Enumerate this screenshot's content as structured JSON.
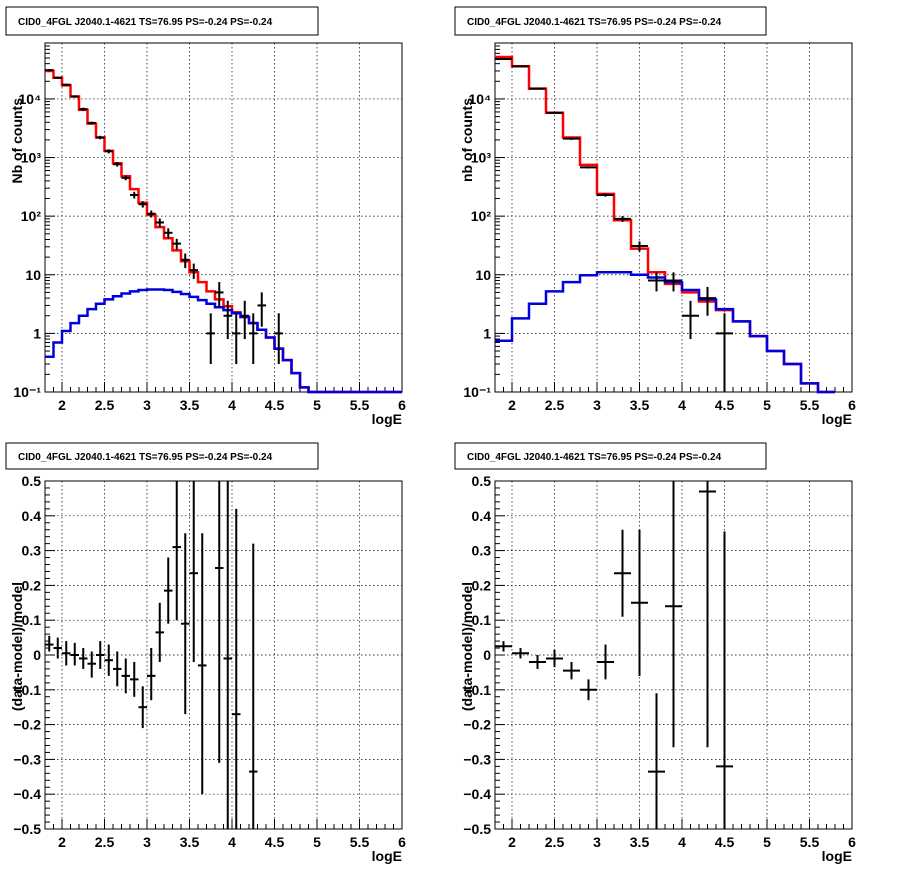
{
  "chart_data": [
    {
      "type": "line",
      "title": "CID0_4FGL J2040.1-4621 TS=76.95 PS=-0.24 PS=-0.24",
      "xlabel": "logE",
      "ylabel": "Nb of counts",
      "yscale": "log",
      "xlim": [
        1.8,
        6.0
      ],
      "ylim": [
        0.1,
        90000
      ],
      "xticks": [
        2,
        2.5,
        3,
        3.5,
        4,
        4.5,
        5,
        5.5,
        6
      ],
      "xtick_labels": [
        "2",
        "2.5",
        "3",
        "3.5",
        "4",
        "4.5",
        "5",
        "5.5",
        "6"
      ],
      "yticks": [
        0.1,
        1,
        10,
        100,
        1000,
        10000
      ],
      "ytick_labels": [
        "10⁻¹",
        "1",
        "10",
        "10²",
        "10³",
        "10⁴"
      ],
      "grid": true,
      "bin_edges": [
        1.8,
        1.9,
        2.0,
        2.1,
        2.2,
        2.3,
        2.4,
        2.5,
        2.6,
        2.7,
        2.8,
        2.9,
        3.0,
        3.1,
        3.2,
        3.3,
        3.4,
        3.5,
        3.6,
        3.7,
        3.8,
        3.9,
        4.0,
        4.1,
        4.2,
        4.3,
        4.4,
        4.5,
        4.6,
        4.7,
        4.8,
        4.9,
        5.0,
        5.1,
        5.2,
        5.3,
        5.4,
        5.5,
        5.6,
        5.7,
        5.8,
        5.9,
        6.0
      ],
      "series": [
        {
          "color": "#ff0000",
          "style": "step",
          "values": [
            30000,
            23000,
            17000,
            11000,
            6500,
            3800,
            2200,
            1300,
            800,
            480,
            290,
            170,
            105,
            65,
            42,
            26,
            17,
            11,
            7.5,
            5.2,
            3.8,
            2.9,
            2.3,
            1.9,
            1.5,
            1.15,
            0.85,
            0.55,
            0.35,
            0.21,
            0.12,
            0.1,
            0.1,
            0.1,
            0.1,
            0.1,
            0.1,
            0.1,
            0.1,
            0.1,
            0.1,
            0.1
          ]
        },
        {
          "color": "#0000dd",
          "style": "step",
          "values": [
            0.4,
            0.7,
            1.1,
            1.5,
            2.0,
            2.6,
            3.2,
            3.8,
            4.3,
            4.8,
            5.2,
            5.5,
            5.6,
            5.6,
            5.5,
            5.1,
            4.7,
            4.2,
            3.7,
            3.2,
            2.8,
            2.5,
            2.2,
            1.9,
            1.5,
            1.15,
            0.85,
            0.55,
            0.35,
            0.21,
            0.12,
            0.1,
            0.1,
            0.1,
            0.1,
            0.1,
            0.1,
            0.1,
            0.1,
            0.1,
            0.1,
            0.1
          ]
        }
      ],
      "points": [
        {
          "x": 1.85,
          "y": 31000,
          "lo": 30000,
          "hi": 32000
        },
        {
          "x": 1.95,
          "y": 23000,
          "lo": 22000,
          "hi": 24000
        },
        {
          "x": 2.05,
          "y": 17500,
          "lo": 16800,
          "hi": 18200
        },
        {
          "x": 2.15,
          "y": 11000,
          "lo": 10500,
          "hi": 11500
        },
        {
          "x": 2.25,
          "y": 6700,
          "lo": 6300,
          "hi": 7100
        },
        {
          "x": 2.35,
          "y": 3900,
          "lo": 3700,
          "hi": 4100
        },
        {
          "x": 2.45,
          "y": 2200,
          "lo": 2050,
          "hi": 2350
        },
        {
          "x": 2.55,
          "y": 1280,
          "lo": 1180,
          "hi": 1380
        },
        {
          "x": 2.65,
          "y": 770,
          "lo": 700,
          "hi": 840
        },
        {
          "x": 2.75,
          "y": 450,
          "lo": 410,
          "hi": 490
        },
        {
          "x": 2.85,
          "y": 230,
          "lo": 200,
          "hi": 260
        },
        {
          "x": 2.95,
          "y": 160,
          "lo": 140,
          "hi": 180
        },
        {
          "x": 3.05,
          "y": 110,
          "lo": 95,
          "hi": 125
        },
        {
          "x": 3.15,
          "y": 78,
          "lo": 65,
          "hi": 91
        },
        {
          "x": 3.25,
          "y": 52,
          "lo": 42,
          "hi": 62
        },
        {
          "x": 3.35,
          "y": 34,
          "lo": 27,
          "hi": 41
        },
        {
          "x": 3.45,
          "y": 18,
          "lo": 13,
          "hi": 23
        },
        {
          "x": 3.55,
          "y": 12,
          "lo": 8.5,
          "hi": 15.5
        },
        {
          "x": 3.75,
          "y": 1,
          "lo": 0.3,
          "hi": 2.2
        },
        {
          "x": 3.85,
          "y": 5,
          "lo": 2.8,
          "hi": 7.5
        },
        {
          "x": 3.95,
          "y": 2,
          "lo": 0.8,
          "hi": 3.6
        },
        {
          "x": 4.05,
          "y": 1,
          "lo": 0.3,
          "hi": 2.2
        },
        {
          "x": 4.15,
          "y": 2,
          "lo": 0.8,
          "hi": 3.6
        },
        {
          "x": 4.25,
          "y": 1,
          "lo": 0.3,
          "hi": 2.2
        },
        {
          "x": 4.35,
          "y": 3,
          "lo": 1.3,
          "hi": 5.0
        },
        {
          "x": 4.55,
          "y": 1,
          "lo": 0.3,
          "hi": 2.2
        }
      ]
    },
    {
      "type": "line",
      "title": "CID0_4FGL J2040.1-4621 TS=76.95 PS=-0.24 PS=-0.24",
      "xlabel": "logE",
      "ylabel": "nb of counts",
      "yscale": "log",
      "xlim": [
        1.8,
        6.0
      ],
      "ylim": [
        0.1,
        90000
      ],
      "xticks": [
        2,
        2.5,
        3,
        3.5,
        4,
        4.5,
        5,
        5.5,
        6
      ],
      "xtick_labels": [
        "2",
        "2.5",
        "3",
        "3.5",
        "4",
        "4.5",
        "5",
        "5.5",
        "6"
      ],
      "yticks": [
        0.1,
        1,
        10,
        100,
        1000,
        10000
      ],
      "ytick_labels": [
        "10⁻¹",
        "1",
        "10",
        "10²",
        "10³",
        "10⁴"
      ],
      "grid": true,
      "bin_edges": [
        1.8,
        2.0,
        2.2,
        2.4,
        2.6,
        2.8,
        3.0,
        3.2,
        3.4,
        3.6,
        3.8,
        4.0,
        4.2,
        4.4,
        4.6,
        4.8,
        5.0,
        5.2,
        5.4,
        5.6,
        5.8,
        6.0
      ],
      "series": [
        {
          "color": "#ff0000",
          "style": "step",
          "values": [
            52000,
            36000,
            15000,
            5800,
            2200,
            750,
            240,
            85,
            28,
            11,
            7,
            5,
            3.5,
            2.5,
            1.6,
            0.9,
            0.5,
            0.3,
            0.14,
            0.1
          ]
        },
        {
          "color": "#0000dd",
          "style": "step",
          "values": [
            0.75,
            1.8,
            3.2,
            5.2,
            7.5,
            9.8,
            11,
            11,
            10,
            9,
            7.5,
            5.5,
            3.8,
            2.6,
            1.6,
            0.9,
            0.5,
            0.3,
            0.14,
            0.1
          ]
        }
      ],
      "points": [
        {
          "x": 1.9,
          "y": 48000,
          "lo": 47500,
          "hi": 48500
        },
        {
          "x": 2.1,
          "y": 36000,
          "lo": 35500,
          "hi": 36500
        },
        {
          "x": 2.3,
          "y": 15000,
          "lo": 14700,
          "hi": 15300
        },
        {
          "x": 2.5,
          "y": 5800,
          "lo": 5650,
          "hi": 5950
        },
        {
          "x": 2.7,
          "y": 2100,
          "lo": 2000,
          "hi": 2200
        },
        {
          "x": 2.9,
          "y": 680,
          "lo": 650,
          "hi": 710
        },
        {
          "x": 3.1,
          "y": 230,
          "lo": 215,
          "hi": 245
        },
        {
          "x": 3.3,
          "y": 90,
          "lo": 80,
          "hi": 100
        },
        {
          "x": 3.5,
          "y": 31,
          "lo": 25,
          "hi": 37
        },
        {
          "x": 3.7,
          "y": 8,
          "lo": 5.2,
          "hi": 11
        },
        {
          "x": 3.9,
          "y": 8,
          "lo": 5.2,
          "hi": 11
        },
        {
          "x": 4.1,
          "y": 2,
          "lo": 0.8,
          "hi": 3.6
        },
        {
          "x": 4.3,
          "y": 4,
          "lo": 2.0,
          "hi": 6.2
        },
        {
          "x": 4.5,
          "y": 1,
          "lo": 0.1,
          "hi": 2.2
        }
      ]
    },
    {
      "type": "scatter",
      "title": "CID0_4FGL J2040.1-4621 TS=76.95 PS=-0.24 PS=-0.24",
      "xlabel": "logE",
      "ylabel": "(data-model)/model",
      "xlim": [
        1.8,
        6.0
      ],
      "ylim": [
        -0.5,
        0.5
      ],
      "xticks": [
        2,
        2.5,
        3,
        3.5,
        4,
        4.5,
        5,
        5.5,
        6
      ],
      "xtick_labels": [
        "2",
        "2.5",
        "3",
        "3.5",
        "4",
        "4.5",
        "5",
        "5.5",
        "6"
      ],
      "yticks": [
        -0.5,
        -0.4,
        -0.3,
        -0.2,
        -0.1,
        0,
        0.1,
        0.2,
        0.3,
        0.4,
        0.5
      ],
      "ytick_labels": [
        "−0.5",
        "−0.4",
        "−0.3",
        "−0.2",
        "−0.1",
        "0",
        "0.1",
        "0.2",
        "0.3",
        "0.4",
        "0.5"
      ],
      "grid": true,
      "points": [
        {
          "x": 1.85,
          "y": 0.03,
          "lo": 0.01,
          "hi": 0.055
        },
        {
          "x": 1.95,
          "y": 0.02,
          "lo": -0.01,
          "hi": 0.05
        },
        {
          "x": 2.05,
          "y": 0.005,
          "lo": -0.03,
          "hi": 0.04
        },
        {
          "x": 2.15,
          "y": 0.0,
          "lo": -0.03,
          "hi": 0.035
        },
        {
          "x": 2.25,
          "y": -0.01,
          "lo": -0.04,
          "hi": 0.02
        },
        {
          "x": 2.35,
          "y": -0.025,
          "lo": -0.065,
          "hi": 0.01
        },
        {
          "x": 2.45,
          "y": 0.0,
          "lo": -0.04,
          "hi": 0.04
        },
        {
          "x": 2.55,
          "y": -0.015,
          "lo": -0.06,
          "hi": 0.03
        },
        {
          "x": 2.65,
          "y": -0.04,
          "lo": -0.09,
          "hi": 0.01
        },
        {
          "x": 2.75,
          "y": -0.06,
          "lo": -0.11,
          "hi": -0.01
        },
        {
          "x": 2.85,
          "y": -0.07,
          "lo": -0.12,
          "hi": -0.02
        },
        {
          "x": 2.95,
          "y": -0.15,
          "lo": -0.21,
          "hi": -0.09
        },
        {
          "x": 3.05,
          "y": -0.06,
          "lo": -0.13,
          "hi": 0.02
        },
        {
          "x": 3.15,
          "y": 0.065,
          "lo": -0.02,
          "hi": 0.15
        },
        {
          "x": 3.25,
          "y": 0.185,
          "lo": 0.09,
          "hi": 0.28
        },
        {
          "x": 3.35,
          "y": 0.31,
          "lo": 0.1,
          "hi": 0.5
        },
        {
          "x": 3.45,
          "y": 0.09,
          "lo": -0.17,
          "hi": 0.35
        },
        {
          "x": 3.55,
          "y": 0.235,
          "lo": -0.02,
          "hi": 0.5
        },
        {
          "x": 3.65,
          "y": -0.03,
          "lo": -0.4,
          "hi": 0.35
        },
        {
          "x": 3.85,
          "y": 0.25,
          "lo": -0.31,
          "hi": 0.5
        },
        {
          "x": 3.95,
          "y": -0.01,
          "lo": -0.5,
          "hi": 0.5
        },
        {
          "x": 4.05,
          "y": -0.17,
          "lo": -0.5,
          "hi": 0.42
        },
        {
          "x": 4.25,
          "y": -0.335,
          "lo": -0.5,
          "hi": 0.32
        }
      ]
    },
    {
      "type": "scatter",
      "title": "CID0_4FGL J2040.1-4621 TS=76.95 PS=-0.24 PS=-0.24",
      "xlabel": "logE",
      "ylabel": "(data-model)/model",
      "xlim": [
        1.8,
        6.0
      ],
      "ylim": [
        -0.5,
        0.5
      ],
      "xticks": [
        2,
        2.5,
        3,
        3.5,
        4,
        4.5,
        5,
        5.5,
        6
      ],
      "xtick_labels": [
        "2",
        "2.5",
        "3",
        "3.5",
        "4",
        "4.5",
        "5",
        "5.5",
        "6"
      ],
      "yticks": [
        -0.5,
        -0.4,
        -0.3,
        -0.2,
        -0.1,
        0,
        0.1,
        0.2,
        0.3,
        0.4,
        0.5
      ],
      "ytick_labels": [
        "−0.5",
        "−0.4",
        "−0.3",
        "−0.2",
        "−0.1",
        "0",
        "0.1",
        "0.2",
        "0.3",
        "0.4",
        "0.5"
      ],
      "grid": true,
      "points": [
        {
          "x": 1.9,
          "y": 0.025,
          "lo": 0.01,
          "hi": 0.04
        },
        {
          "x": 2.1,
          "y": 0.005,
          "lo": -0.01,
          "hi": 0.02
        },
        {
          "x": 2.3,
          "y": -0.02,
          "lo": -0.04,
          "hi": 0.0
        },
        {
          "x": 2.5,
          "y": -0.01,
          "lo": -0.035,
          "hi": 0.015
        },
        {
          "x": 2.7,
          "y": -0.045,
          "lo": -0.07,
          "hi": -0.02
        },
        {
          "x": 2.9,
          "y": -0.1,
          "lo": -0.13,
          "hi": -0.07
        },
        {
          "x": 3.1,
          "y": -0.02,
          "lo": -0.07,
          "hi": 0.03
        },
        {
          "x": 3.3,
          "y": 0.235,
          "lo": 0.11,
          "hi": 0.36
        },
        {
          "x": 3.5,
          "y": 0.15,
          "lo": -0.06,
          "hi": 0.36
        },
        {
          "x": 3.7,
          "y": -0.335,
          "lo": -0.5,
          "hi": -0.11
        },
        {
          "x": 3.9,
          "y": 0.14,
          "lo": -0.265,
          "hi": 0.5
        },
        {
          "x": 4.3,
          "y": 0.47,
          "lo": -0.265,
          "hi": 0.5
        },
        {
          "x": 4.5,
          "y": -0.32,
          "lo": -0.5,
          "hi": 0.355
        }
      ]
    }
  ]
}
